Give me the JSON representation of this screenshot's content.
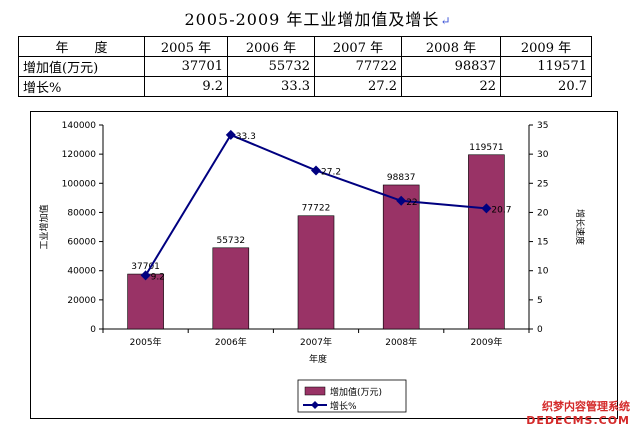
{
  "document": {
    "title": "2005-2009 年工业增加值及增长",
    "paragraph_mark": "↵"
  },
  "table": {
    "header": [
      "年　　度",
      "2005 年",
      "2006 年",
      "2007 年",
      "2008 年",
      "2009 年"
    ],
    "rows": [
      {
        "label": "增加值(万元)",
        "values": [
          "37701",
          "55732",
          "77722",
          "98837",
          "119571"
        ]
      },
      {
        "label": "增长%",
        "values": [
          "9.2",
          "33.3",
          "27.2",
          "22",
          "20.7"
        ]
      }
    ]
  },
  "chart_data": {
    "type": "bar",
    "categories": [
      "2005年",
      "2006年",
      "2007年",
      "2008年",
      "2009年"
    ],
    "series": [
      {
        "name": "增加值(万元)",
        "type": "bar",
        "axis": "left",
        "values": [
          37701,
          55732,
          77722,
          98837,
          119571
        ]
      },
      {
        "name": "增长%",
        "type": "line",
        "axis": "right",
        "values": [
          9.2,
          33.3,
          27.2,
          22,
          20.7
        ]
      }
    ],
    "xlabel": "年度",
    "ylabel": "工业增加值",
    "y2label": "增长速度",
    "ylim": [
      0,
      140000
    ],
    "yticks": [
      "0",
      "20000",
      "40000",
      "60000",
      "80000",
      "100000",
      "120000",
      "140000"
    ],
    "y2lim": [
      0,
      35
    ],
    "y2ticks": [
      "0",
      "5",
      "10",
      "15",
      "20",
      "25",
      "30",
      "35"
    ],
    "grid": false,
    "legend_position": "bottom",
    "colors": {
      "bar": "#993366",
      "line": "#000080",
      "line_marker": "#000080"
    }
  },
  "watermark": {
    "line1": "织梦内容管理系统",
    "line2": "DEDECMS.COM"
  }
}
